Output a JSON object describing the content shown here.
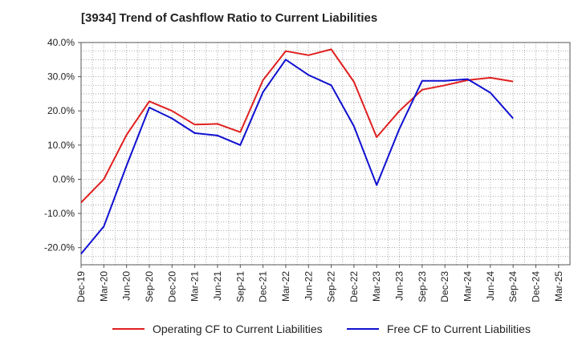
{
  "chart_data": {
    "type": "line",
    "title": "[3934]  Trend of Cashflow Ratio to Current Liabilities",
    "xlabel": "",
    "ylabel": "",
    "ylim": [
      -25,
      40
    ],
    "yticks": [
      40,
      30,
      20,
      10,
      0,
      -10,
      -20
    ],
    "ytick_labels": [
      "40.0%",
      "30.0%",
      "20.0%",
      "10.0%",
      "0.0%",
      "-10.0%",
      "-20.0%"
    ],
    "categories": [
      "Dec-19",
      "Mar-20",
      "Jun-20",
      "Sep-20",
      "Dec-20",
      "Mar-21",
      "Jun-21",
      "Sep-21",
      "Dec-21",
      "Mar-22",
      "Jun-22",
      "Sep-22",
      "Dec-22",
      "Mar-23",
      "Jun-23",
      "Sep-23",
      "Dec-23",
      "Mar-24",
      "Jun-24",
      "Sep-24",
      "Dec-24",
      "Mar-25"
    ],
    "grid": true,
    "legend_position": "bottom",
    "series": [
      {
        "name": "Operating CF to Current Liabilities",
        "color": "#e02020",
        "values": [
          -6.8,
          0.0,
          13.0,
          22.8,
          20.0,
          16.0,
          16.2,
          13.8,
          29.0,
          37.5,
          36.3,
          38.0,
          28.5,
          12.3,
          20.0,
          26.2,
          27.5,
          29.0,
          29.7,
          28.6,
          null,
          null
        ]
      },
      {
        "name": "Free CF to Current Liabilities",
        "color": "#1010d0",
        "values": [
          -21.8,
          -13.8,
          4.0,
          21.0,
          17.8,
          13.5,
          12.8,
          10.0,
          25.5,
          35.0,
          30.5,
          27.5,
          15.5,
          -1.7,
          14.8,
          28.8,
          28.8,
          29.3,
          25.3,
          17.8,
          null,
          null
        ]
      }
    ]
  }
}
